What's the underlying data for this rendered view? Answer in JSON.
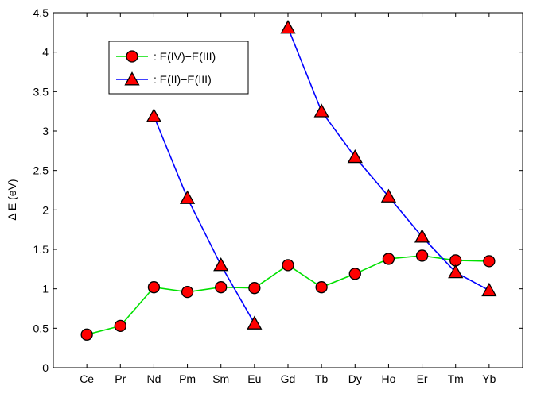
{
  "chart_data": {
    "type": "line",
    "title": "",
    "xlabel": "",
    "ylabel": "Δ E  (eV)",
    "categories": [
      "Ce",
      "Pr",
      "Nd",
      "Pm",
      "Sm",
      "Eu",
      "Gd",
      "Tb",
      "Dy",
      "Ho",
      "Er",
      "Tm",
      "Yb"
    ],
    "ylim": [
      0,
      4.5
    ],
    "yticks": [
      "0",
      "0.5",
      "1",
      "1.5",
      "2",
      "2.5",
      "3",
      "3.5",
      "4",
      "4.5"
    ],
    "grid": false,
    "legend": "top-left",
    "series": [
      {
        "name": "E(IV)−E(III)",
        "legend_label": ":  E(IV)−E(III)",
        "marker": "circle",
        "line_color": "#00e000",
        "marker_color": "#ff0000",
        "values": [
          0.42,
          0.53,
          1.02,
          0.96,
          1.02,
          1.01,
          1.3,
          1.02,
          1.19,
          1.38,
          1.42,
          1.36,
          1.35
        ]
      },
      {
        "name": "E(II)−E(III)",
        "legend_label": ":  E(II)−E(III)",
        "marker": "triangle",
        "line_color": "#0000ff",
        "marker_color": "#ff0000",
        "segments": [
          [
            2,
            5
          ],
          [
            6,
            12
          ]
        ],
        "values": [
          null,
          null,
          3.19,
          2.15,
          1.3,
          0.56,
          4.31,
          3.25,
          2.67,
          2.17,
          1.66,
          1.21,
          0.98
        ]
      }
    ]
  }
}
